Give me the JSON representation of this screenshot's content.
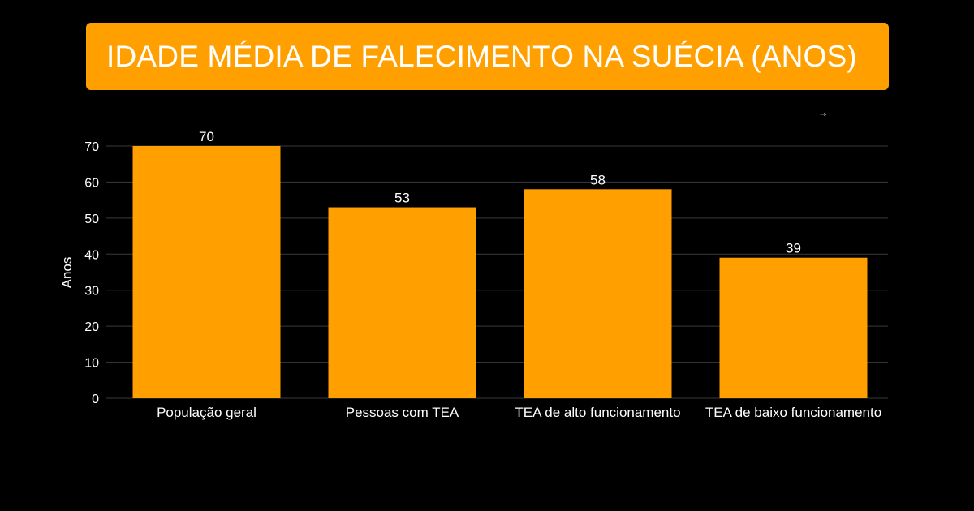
{
  "title": "IDADE MÉDIA DE FALECIMENTO NA SUÉCIA (ANOS)",
  "arrow_glyph": "→",
  "colors": {
    "background": "#000000",
    "accent": "#FFA000",
    "text": "#FFFFFF",
    "grid": "#3a3a3a"
  },
  "chart_data": {
    "type": "bar",
    "title": "IDADE MÉDIA DE FALECIMENTO NA SUÉCIA (ANOS)",
    "xlabel": "",
    "ylabel": "Anos",
    "categories": [
      "População geral",
      "Pessoas com TEA",
      "TEA de alto funcionamento",
      "TEA de baixo funcionamento"
    ],
    "values": [
      70,
      53,
      58,
      39
    ],
    "ylim": [
      0,
      70
    ],
    "yticks": [
      0,
      10,
      20,
      30,
      40,
      50,
      60,
      70
    ],
    "grid": true,
    "data_labels": true,
    "legend": "none"
  }
}
